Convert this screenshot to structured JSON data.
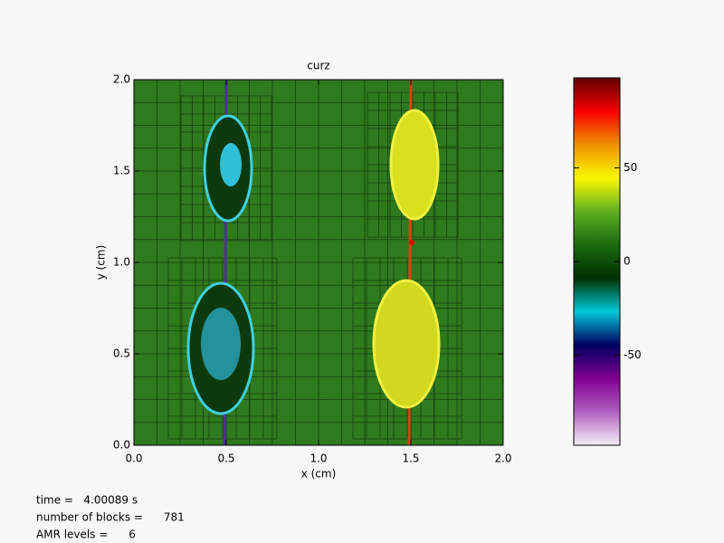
{
  "chart_data": {
    "type": "heatmap",
    "title": "curz",
    "x_label": "x (cm)",
    "y_label": "y (cm)",
    "xlim": [
      0,
      2
    ],
    "ylim": [
      0,
      2
    ],
    "xticks": [
      {
        "value": 0,
        "label": "0.0"
      },
      {
        "value": 0.5,
        "label": "0.5"
      },
      {
        "value": 1,
        "label": "1.0"
      },
      {
        "value": 1.5,
        "label": "1.5"
      },
      {
        "value": 2,
        "label": "2.0"
      }
    ],
    "yticks": [
      {
        "value": 0,
        "label": "0.0"
      },
      {
        "value": 0.5,
        "label": "0.5"
      },
      {
        "value": 1,
        "label": "1.0"
      },
      {
        "value": 1.5,
        "label": "1.5"
      },
      {
        "value": 2,
        "label": "2.0"
      }
    ],
    "zlim": [
      -98,
      98
    ],
    "zticks": [
      -50,
      0,
      50
    ],
    "colormap": [
      "#f4eef6",
      "#b060c0",
      "#800090",
      "#000060",
      "#00c8d8",
      "#003000",
      "#1a6a10",
      "#60b020",
      "#f8f800",
      "#f09000",
      "#f80000",
      "#600000"
    ],
    "annotations": [
      "time =   4.00089 s",
      "number of blocks =      781",
      "AMR levels =      6"
    ]
  }
}
